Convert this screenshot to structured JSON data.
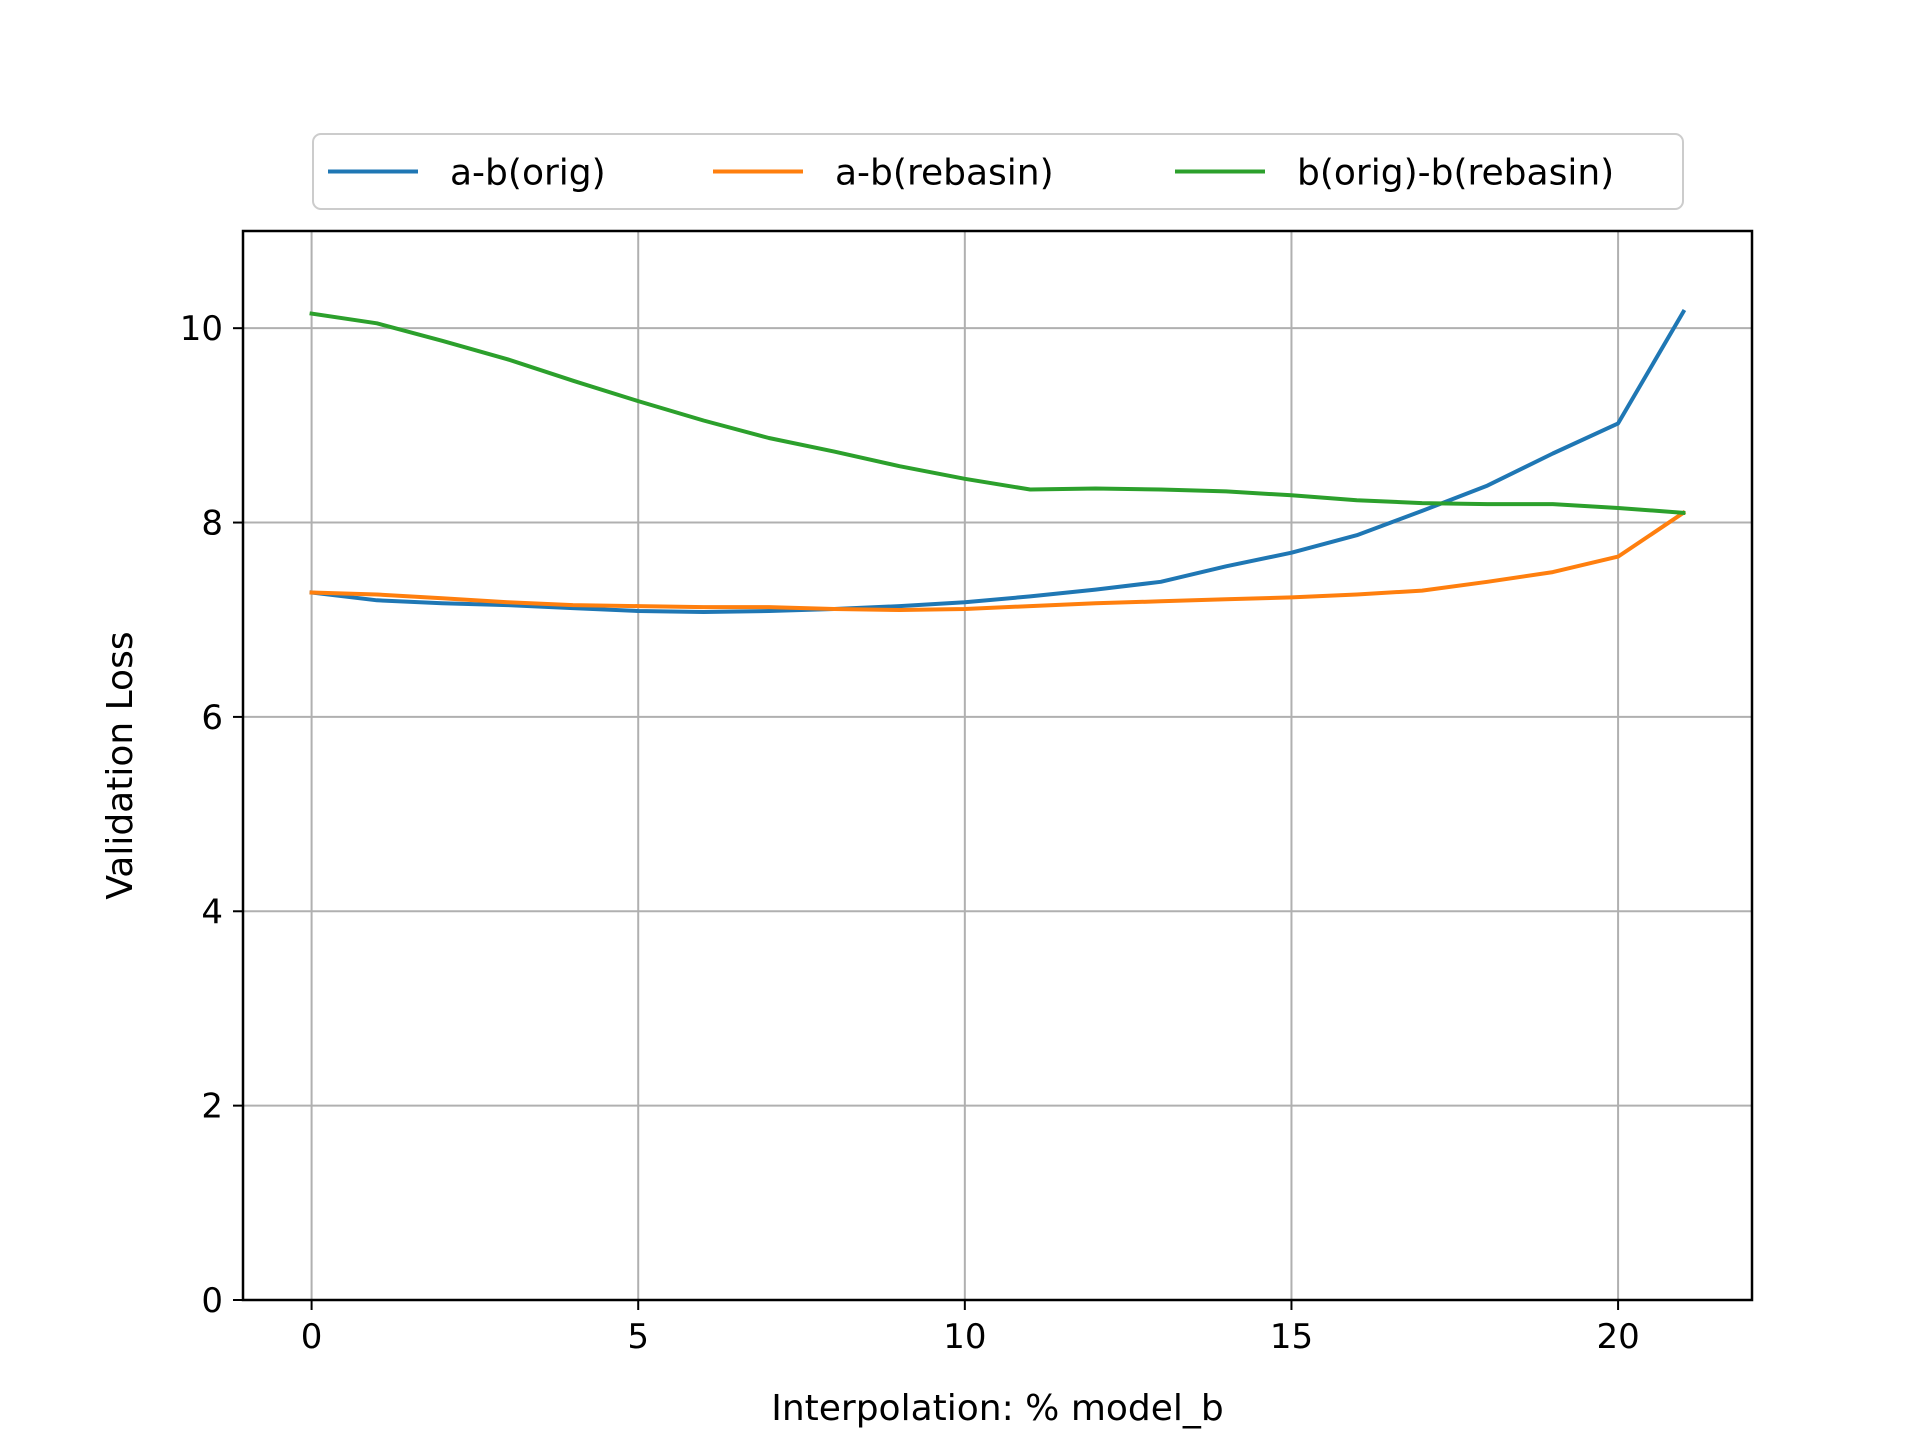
{
  "chart_data": {
    "type": "line",
    "xlabel": "Interpolation: % model_b",
    "ylabel": "Validation Loss",
    "xlim": [
      -1.05,
      22.05
    ],
    "ylim": [
      0,
      11
    ],
    "xticks": [
      0,
      5,
      10,
      15,
      20
    ],
    "yticks": [
      0,
      2,
      4,
      6,
      8,
      10
    ],
    "grid": true,
    "legend_position": "top-center, outside plot",
    "x": [
      0,
      1,
      2,
      3,
      4,
      5,
      6,
      7,
      8,
      9,
      10,
      11,
      12,
      13,
      14,
      15,
      16,
      17,
      18,
      19,
      20,
      21
    ],
    "series": [
      {
        "name": "a-b(orig)",
        "color": "#1f77b4",
        "values": [
          7.28,
          7.2,
          7.17,
          7.15,
          7.12,
          7.09,
          7.08,
          7.09,
          7.11,
          7.14,
          7.18,
          7.24,
          7.31,
          7.39,
          7.55,
          7.69,
          7.87,
          8.12,
          8.38,
          8.71,
          9.02,
          10.17
        ]
      },
      {
        "name": "a-b(rebasin)",
        "color": "#ff7f0e",
        "values": [
          7.28,
          7.26,
          7.22,
          7.18,
          7.15,
          7.14,
          7.13,
          7.13,
          7.11,
          7.1,
          7.11,
          7.14,
          7.17,
          7.19,
          7.21,
          7.23,
          7.26,
          7.3,
          7.39,
          7.49,
          7.65,
          8.1
        ]
      },
      {
        "name": "b(orig)-b(rebasin)",
        "color": "#2ca02c",
        "values": [
          10.15,
          10.05,
          9.87,
          9.68,
          9.46,
          9.25,
          9.05,
          8.87,
          8.73,
          8.58,
          8.45,
          8.34,
          8.35,
          8.34,
          8.32,
          8.28,
          8.23,
          8.2,
          8.19,
          8.19,
          8.15,
          8.1
        ]
      }
    ]
  }
}
